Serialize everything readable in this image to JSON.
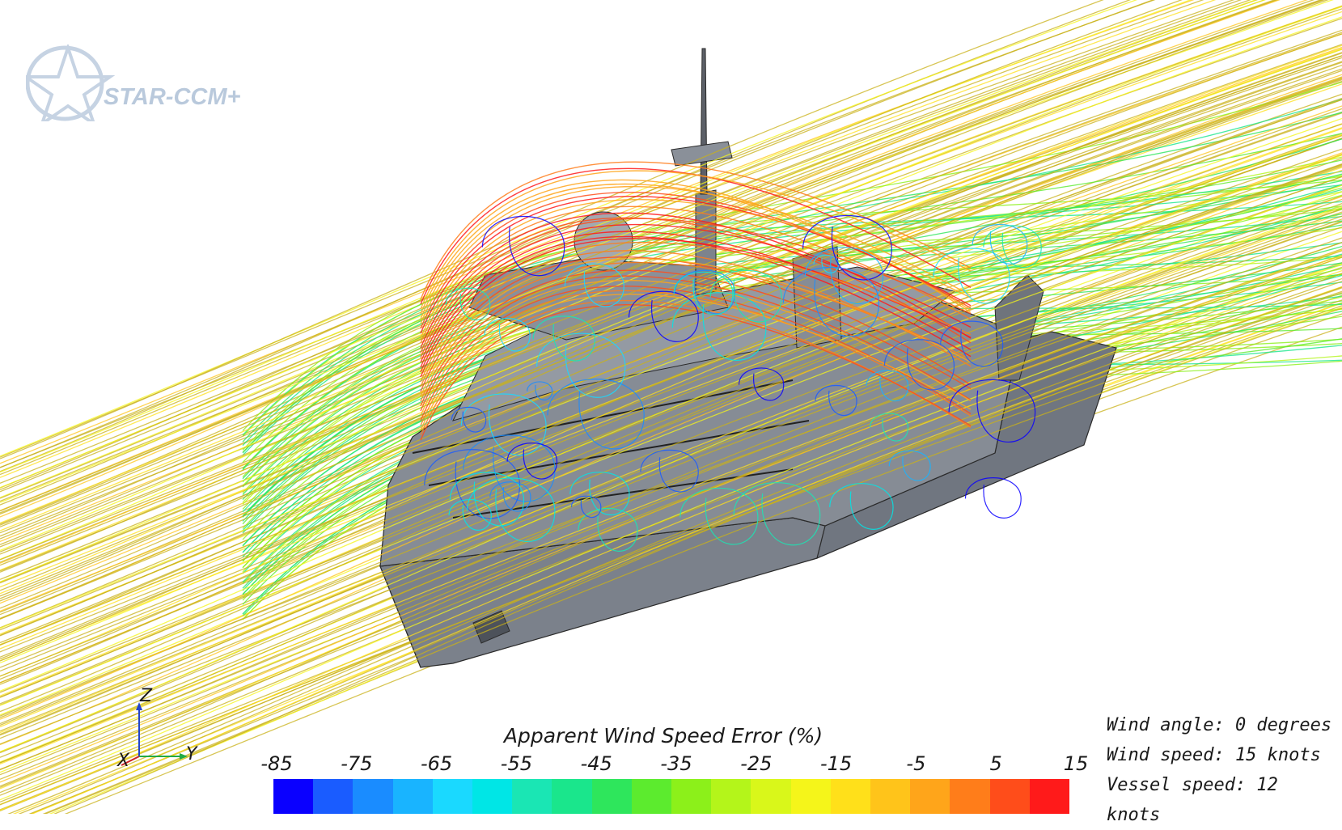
{
  "branding": {
    "logo_text": "STAR-CCM+"
  },
  "legend": {
    "title": "Apparent Wind Speed Error (%)",
    "ticks": [
      "-85",
      "-75",
      "-65",
      "-55",
      "-45",
      "-35",
      "-25",
      "-15",
      "-5",
      "5",
      "15"
    ],
    "colors": [
      "#0a00ff",
      "#1a5cff",
      "#1a8cff",
      "#19b4ff",
      "#1ad9ff",
      "#00e6e6",
      "#1ae6b4",
      "#1ae68c",
      "#2ee65c",
      "#5ceb2e",
      "#8cf01a",
      "#b4f51a",
      "#d9f71a",
      "#f5f51a",
      "#ffe01a",
      "#ffc41a",
      "#ffa51a",
      "#ff7d1a",
      "#ff4d1a",
      "#ff1a1a"
    ]
  },
  "conditions": {
    "wind_angle": "Wind angle: 0 degrees",
    "wind_speed": "Wind speed: 15 knots",
    "vessel_speed": "Vessel speed: 12 knots"
  },
  "axes": {
    "z": "Z",
    "y": "Y",
    "x": "X"
  },
  "palette": {
    "hull": "#757b85",
    "hull_shadow": "#5d626b",
    "deck": "#9da2aa",
    "axis_z": "#2244cc",
    "axis_y": "#22aa44",
    "axis_x": "#cc2222"
  }
}
